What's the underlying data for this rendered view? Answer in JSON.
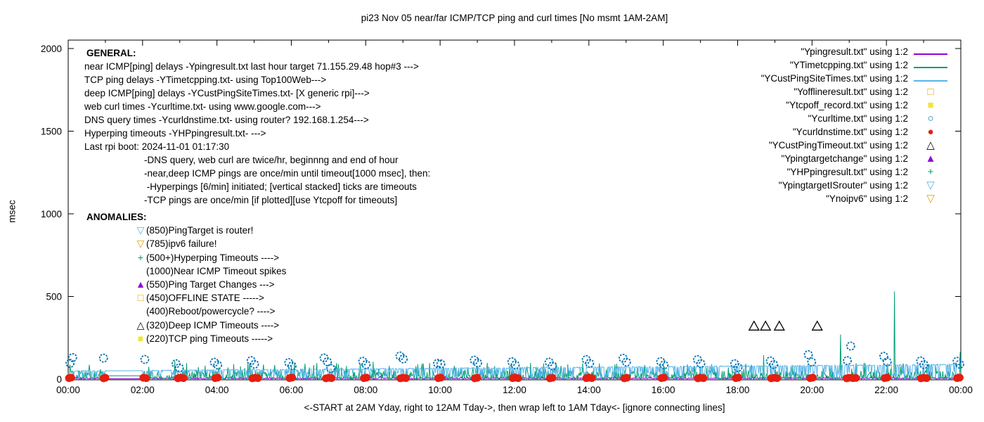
{
  "palette": {
    "purple": "#9400d3",
    "teal": "#009e73",
    "sky": "#56b4e9",
    "orange": "#e69f00",
    "yellow": "#f0e442",
    "blue": "#0072b2",
    "red": "#e51e10",
    "black": "#000000"
  },
  "chart_data": {
    "type": "line+scatter",
    "title": "pi23 Nov 05  near/far ICMP/TCP ping and curl times [No msmt 1AM-2AM]",
    "ylabel": "msec",
    "xlabel": "<-START at 2AM Yday, right to 12AM Tday->, then wrap left to 1AM Tday<- [ignore connecting lines]",
    "xlim_hours": [
      0,
      24
    ],
    "ylim": [
      0,
      2000
    ],
    "y_ticks": [
      0,
      500,
      1000,
      1500,
      2000
    ],
    "x_tick_hours": [
      0,
      2,
      4,
      6,
      8,
      10,
      12,
      14,
      16,
      18,
      20,
      22,
      24
    ],
    "x_tick_labels": [
      "00:00",
      "02:00",
      "04:00",
      "06:00",
      "08:00",
      "10:00",
      "12:00",
      "14:00",
      "16:00",
      "18:00",
      "20:00",
      "22:00",
      "00:00"
    ],
    "x_minor_tick_every_hours": 1,
    "grid": false,
    "legend_position": "top-right-outside-markers",
    "no_measurement_gap_hours": [
      1.03,
      1.97
    ],
    "noise_series": [
      {
        "name": "Ypingresult.txt",
        "color": "#9400d3",
        "kind": "grass",
        "base": 1,
        "jitter": 7,
        "p_mid": 0.06,
        "mid_max": 16,
        "p_tall": 0.0,
        "tall_max": 0,
        "gap_value": 2,
        "seed": 11,
        "spikes": []
      },
      {
        "name": "YTimetcpping.txt",
        "color": "#009e73",
        "kind": "grass",
        "base": 1,
        "jitter": 9,
        "p_mid": 0.45,
        "mid_max": 52,
        "p_tall": 0.05,
        "tall_max": 100,
        "gap_value": 20,
        "seed": 23,
        "spikes": [
          [
            2.87,
            110
          ],
          [
            4.3,
            70
          ],
          [
            6.6,
            85
          ],
          [
            8.2,
            105
          ],
          [
            9.4,
            90
          ],
          [
            11.3,
            75
          ],
          [
            13.25,
            80
          ],
          [
            15.5,
            85
          ],
          [
            17.3,
            90
          ],
          [
            18.7,
            145
          ],
          [
            20.77,
            270
          ],
          [
            22.22,
            530
          ],
          [
            22.45,
            95
          ],
          [
            23.98,
            165
          ]
        ]
      },
      {
        "name": "YCustPingSiteTimes.txt",
        "color": "#56b4e9",
        "kind": "ceiling",
        "level_start": 48,
        "level_end": 88,
        "jitter": 3,
        "dip_prob": 0.33,
        "dip_max": 45,
        "seed": 37,
        "spikes": []
      }
    ],
    "point_series": [
      {
        "name": "Yofflineresult.txt",
        "marker": "square-open",
        "color": "#e69f00",
        "points": []
      },
      {
        "name": "Ytcpoff_record.txt",
        "marker": "square-filled",
        "color": "#f0e442",
        "points": []
      },
      {
        "name": "Ycurltime.txt",
        "marker": "circle-open",
        "color": "#0072b2",
        "points": [
          [
            0.05,
            95
          ],
          [
            0.12,
            130
          ],
          [
            0.95,
            127
          ],
          [
            2.06,
            119
          ],
          [
            2.9,
            93
          ],
          [
            2.99,
            68
          ],
          [
            3.93,
            102
          ],
          [
            4.02,
            85
          ],
          [
            4.92,
            112
          ],
          [
            5.01,
            90
          ],
          [
            5.93,
            100
          ],
          [
            6.02,
            80
          ],
          [
            6.88,
            128
          ],
          [
            6.97,
            105
          ],
          [
            7.06,
            64
          ],
          [
            7.92,
            108
          ],
          [
            8.01,
            88
          ],
          [
            8.92,
            140
          ],
          [
            9.01,
            122
          ],
          [
            9.93,
            95
          ],
          [
            10.02,
            92
          ],
          [
            10.92,
            115
          ],
          [
            11.01,
            98
          ],
          [
            11.93,
            105
          ],
          [
            12.02,
            86
          ],
          [
            12.93,
            103
          ],
          [
            13.02,
            80
          ],
          [
            13.93,
            118
          ],
          [
            14.02,
            96
          ],
          [
            14.92,
            126
          ],
          [
            15.01,
            103
          ],
          [
            15.93,
            106
          ],
          [
            16.02,
            86
          ],
          [
            16.92,
            118
          ],
          [
            17.01,
            94
          ],
          [
            17.92,
            93
          ],
          [
            18.01,
            70
          ],
          [
            18.88,
            110
          ],
          [
            18.97,
            88
          ],
          [
            19.9,
            148
          ],
          [
            19.99,
            103
          ],
          [
            20.95,
            112
          ],
          [
            21.04,
            200
          ],
          [
            21.93,
            138
          ],
          [
            22.02,
            104
          ],
          [
            22.92,
            110
          ],
          [
            23.01,
            88
          ],
          [
            23.9,
            108
          ],
          [
            23.97,
            90
          ]
        ]
      },
      {
        "name": "Ycurldnstime.txt",
        "marker": "circle-filled",
        "color": "#e51e10",
        "points": [
          [
            0.02,
            6
          ],
          [
            0.08,
            9
          ],
          [
            0.95,
            5
          ],
          [
            1.0,
            8
          ],
          [
            2.02,
            8
          ],
          [
            2.1,
            6
          ],
          [
            2.95,
            5
          ],
          [
            3.02,
            9
          ],
          [
            3.1,
            6
          ],
          [
            3.95,
            6
          ],
          [
            4.02,
            9
          ],
          [
            4.95,
            5
          ],
          [
            5.02,
            8
          ],
          [
            5.1,
            6
          ],
          [
            5.95,
            6
          ],
          [
            6.02,
            9
          ],
          [
            6.93,
            5
          ],
          [
            7.0,
            8
          ],
          [
            7.08,
            6
          ],
          [
            7.95,
            6
          ],
          [
            8.02,
            9
          ],
          [
            8.93,
            5
          ],
          [
            9.0,
            8
          ],
          [
            9.08,
            6
          ],
          [
            9.95,
            6
          ],
          [
            10.02,
            9
          ],
          [
            10.93,
            5
          ],
          [
            11.0,
            8
          ],
          [
            11.95,
            6
          ],
          [
            12.02,
            9
          ],
          [
            12.1,
            6
          ],
          [
            12.95,
            5
          ],
          [
            13.02,
            8
          ],
          [
            13.93,
            6
          ],
          [
            14.0,
            9
          ],
          [
            14.08,
            6
          ],
          [
            14.95,
            5
          ],
          [
            15.02,
            8
          ],
          [
            15.95,
            6
          ],
          [
            16.02,
            9
          ],
          [
            16.93,
            5
          ],
          [
            17.0,
            8
          ],
          [
            17.08,
            6
          ],
          [
            17.95,
            6
          ],
          [
            18.02,
            9
          ],
          [
            18.9,
            5
          ],
          [
            18.98,
            8
          ],
          [
            19.06,
            6
          ],
          [
            19.95,
            6
          ],
          [
            20.02,
            9
          ],
          [
            20.93,
            5
          ],
          [
            21.0,
            8
          ],
          [
            21.1,
            6
          ],
          [
            21.18,
            7
          ],
          [
            21.95,
            6
          ],
          [
            22.02,
            9
          ],
          [
            22.93,
            5
          ],
          [
            23.0,
            8
          ],
          [
            23.08,
            6
          ],
          [
            23.9,
            6
          ],
          [
            23.97,
            9
          ]
        ]
      },
      {
        "name": "YCustPingTimeout.txt",
        "marker": "triangle-open",
        "color": "#000000",
        "points": [
          [
            18.44,
            320
          ],
          [
            18.75,
            320
          ],
          [
            19.12,
            320
          ],
          [
            20.14,
            320
          ]
        ]
      },
      {
        "name": "Ypingtargetchange",
        "marker": "triangle-filled",
        "color": "#9400d3",
        "points": []
      },
      {
        "name": "YHPpingresult.txt",
        "marker": "plus",
        "color": "#009e73",
        "points": []
      },
      {
        "name": "YpingtargetISrouter",
        "marker": "triangle-down-open",
        "color": "#56b4e9",
        "points": []
      },
      {
        "name": "Ynoipv6",
        "marker": "triangle-down-open",
        "color": "#e69f00",
        "points": []
      }
    ]
  },
  "notes": {
    "general_heading": "GENERAL:",
    "general_lines": [
      "near ICMP[ping] delays -Ypingresult.txt last hour target 71.155.29.48 hop#3 --->",
      "TCP ping delays -YTimetcpping.txt- using Top100Web--->",
      "deep ICMP[ping] delays -YCustPingSiteTimes.txt- [X generic rpi]--->",
      "web curl times -Ycurltime.txt- using www.google.com--->",
      "DNS query times -Ycurldnstime.txt- using router? 192.168.1.254--->",
      "Hyperping timeouts -YHPpingresult.txt- --->",
      "Last rpi boot: 2024-11-01 01:17:30",
      "-DNS query, web curl are twice/hr, beginnng and end of hour",
      "-near,deep ICMP pings are once/min until timeout[1000 msec], then:",
      " -Hyperpings [6/min] initiated; [vertical stacked] ticks are timeouts",
      "-TCP pings are once/min [if plotted][use Ytcpoff for timeouts]"
    ],
    "anomalies_heading": "ANOMALIES:",
    "anomalies": [
      {
        "icon": "triangle-down-open-icon",
        "glyph": "▽",
        "color": "#56b4e9",
        "text": "(850)PingTarget is router!"
      },
      {
        "icon": "triangle-down-open-icon",
        "glyph": "▽",
        "color": "#e69f00",
        "text": "(785)ipv6 failure!"
      },
      {
        "icon": "plus-icon",
        "glyph": "+",
        "color": "#009e73",
        "text": "(500+)Hyperping Timeouts ---->"
      },
      {
        "icon": "none",
        "glyph": " ",
        "color": "#000000",
        "text": "(1000)Near ICMP Timeout spikes"
      },
      {
        "icon": "triangle-filled-icon",
        "glyph": "▲",
        "color": "#9400d3",
        "text": "(550)Ping Target Changes --->"
      },
      {
        "icon": "square-open-icon",
        "glyph": "□",
        "color": "#e69f00",
        "text": "(450)OFFLINE STATE ----->"
      },
      {
        "icon": "none",
        "glyph": " ",
        "color": "#000000",
        "text": "(400)Reboot/powercycle? ---->"
      },
      {
        "icon": "triangle-open-icon",
        "glyph": "△",
        "color": "#000000",
        "text": "(320)Deep ICMP Timeouts ---->"
      },
      {
        "icon": "square-filled-icon",
        "glyph": "■",
        "color": "#f0e442",
        "text": "(220)TCP ping Timeouts ----->"
      }
    ]
  },
  "legend": {
    "entries": [
      {
        "label": "\"Ypingresult.txt\" using 1:2",
        "marker": "line",
        "glyph": "",
        "color": "#9400d3"
      },
      {
        "label": "\"YTimetcpping.txt\" using 1:2",
        "marker": "line",
        "glyph": "",
        "color": "#009e73"
      },
      {
        "label": "\"YCustPingSiteTimes.txt\" using 1:2",
        "marker": "line",
        "glyph": "",
        "color": "#56b4e9"
      },
      {
        "label": "\"Yofflineresult.txt\" using 1:2",
        "marker": "square-open",
        "glyph": "□",
        "color": "#e69f00"
      },
      {
        "label": "\"Ytcpoff_record.txt\" using 1:2",
        "marker": "square-filled",
        "glyph": "■",
        "color": "#f0e442"
      },
      {
        "label": "\"Ycurltime.txt\" using 1:2",
        "marker": "circle-open",
        "glyph": "○",
        "color": "#0072b2"
      },
      {
        "label": "\"Ycurldnstime.txt\" using 1:2",
        "marker": "circle-filled",
        "glyph": "●",
        "color": "#e51e10"
      },
      {
        "label": "\"YCustPingTimeout.txt\" using 1:2",
        "marker": "triangle-open",
        "glyph": "△",
        "color": "#000000"
      },
      {
        "label": "\"Ypingtargetchange\" using 1:2",
        "marker": "triangle-filled",
        "glyph": "▲",
        "color": "#9400d3"
      },
      {
        "label": "\"YHPpingresult.txt\" using 1:2",
        "marker": "plus",
        "glyph": "+",
        "color": "#009e73"
      },
      {
        "label": "\"YpingtargetISrouter\" using 1:2",
        "marker": "triangle-down-open",
        "glyph": "▽",
        "color": "#56b4e9"
      },
      {
        "label": "\"Ynoipv6\" using 1:2",
        "marker": "triangle-down-open",
        "glyph": "▽",
        "color": "#e69f00"
      }
    ]
  }
}
